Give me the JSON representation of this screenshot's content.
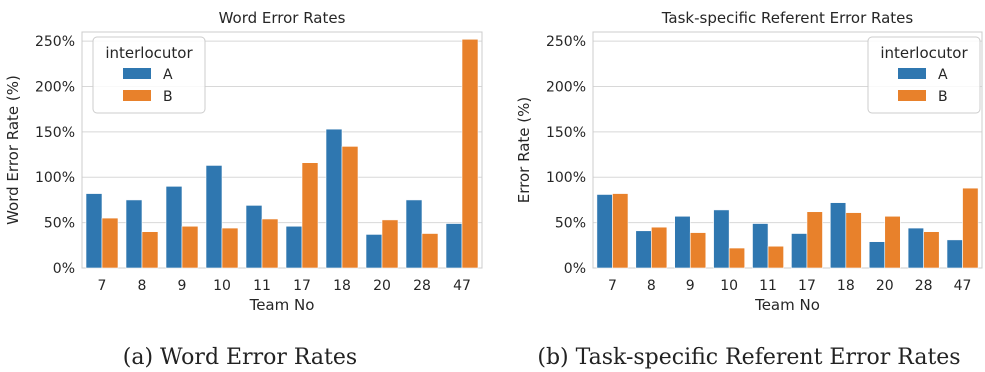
{
  "colors": {
    "A": "#2f77b0",
    "B": "#e8812b",
    "plot_bg": "#ffffff",
    "grid": "#d8d8d8",
    "spine": "#cccccc"
  },
  "chart_data": [
    {
      "type": "bar",
      "title": "Word Error Rates",
      "caption": "(a) Word Error Rates",
      "xlabel": "Team No",
      "ylabel": "Word Error Rate (%)",
      "ylim": [
        0,
        260
      ],
      "yticks": [
        "0%",
        "50%",
        "100%",
        "150%",
        "200%",
        "250%"
      ],
      "ytick_values": [
        0,
        50,
        100,
        150,
        200,
        250
      ],
      "categories": [
        "7",
        "8",
        "9",
        "10",
        "11",
        "17",
        "18",
        "20",
        "28",
        "47"
      ],
      "legend": {
        "title": "interlocutor",
        "placement": "top-left"
      },
      "grid": true,
      "series": [
        {
          "name": "A",
          "values": [
            82,
            75,
            90,
            113,
            69,
            46,
            153,
            37,
            75,
            49
          ]
        },
        {
          "name": "B",
          "values": [
            55,
            40,
            46,
            44,
            54,
            116,
            134,
            53,
            38,
            252
          ]
        }
      ]
    },
    {
      "type": "bar",
      "title": "Task-specific Referent Error Rates",
      "caption": "(b) Task-specific Referent Error Rates",
      "xlabel": "Team No",
      "ylabel": "Error Rate (%)",
      "ylim": [
        0,
        260
      ],
      "yticks": [
        "0%",
        "50%",
        "100%",
        "150%",
        "200%",
        "250%"
      ],
      "ytick_values": [
        0,
        50,
        100,
        150,
        200,
        250
      ],
      "categories": [
        "7",
        "8",
        "9",
        "10",
        "11",
        "17",
        "18",
        "20",
        "28",
        "47"
      ],
      "legend": {
        "title": "interlocutor",
        "placement": "top-right"
      },
      "grid": true,
      "series": [
        {
          "name": "A",
          "values": [
            81,
            41,
            57,
            64,
            49,
            38,
            72,
            29,
            44,
            31
          ]
        },
        {
          "name": "B",
          "values": [
            82,
            45,
            39,
            22,
            24,
            62,
            61,
            57,
            40,
            88
          ]
        }
      ]
    }
  ]
}
